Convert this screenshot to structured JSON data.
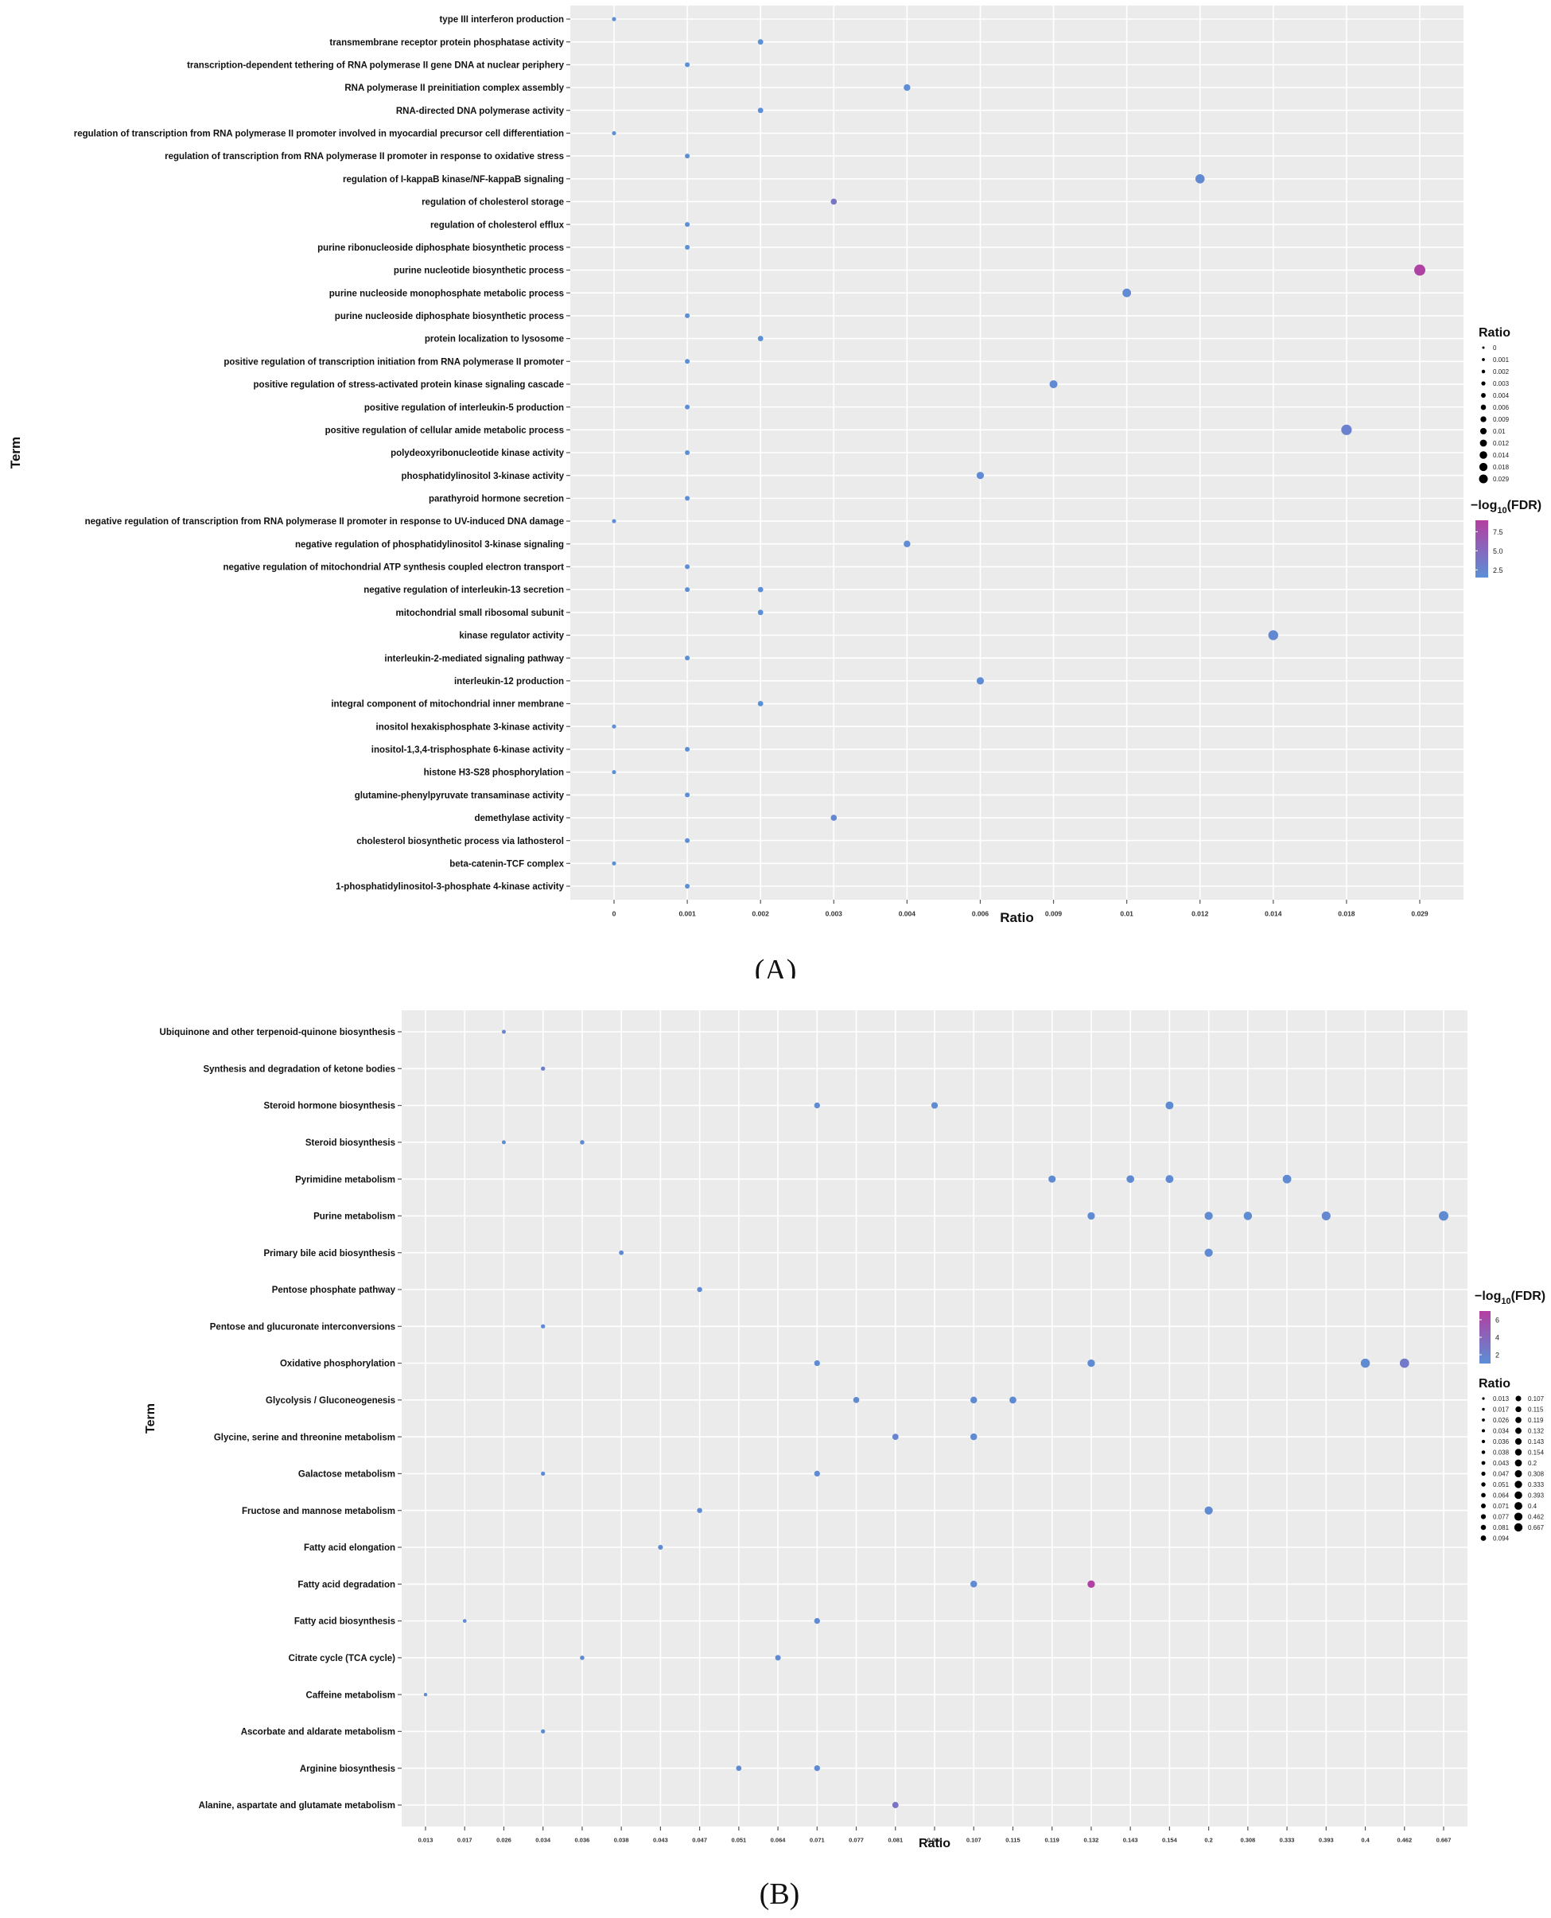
{
  "chart_data": [
    {
      "type": "scatter",
      "panel_label": "(A)",
      "xlabel": "Ratio",
      "ylabel": "Term",
      "x_categories": [
        "0",
        "0.001",
        "0.002",
        "0.003",
        "0.004",
        "0.006",
        "0.009",
        "0.01",
        "0.012",
        "0.014",
        "0.018",
        "0.029"
      ],
      "grid": true,
      "size_legend": {
        "title": "Ratio",
        "entries": [
          "0",
          "0.001",
          "0.002",
          "0.003",
          "0.004",
          "0.006",
          "0.009",
          "0.01",
          "0.012",
          "0.014",
          "0.018",
          "0.029"
        ]
      },
      "color_legend": {
        "title_prefix": "−log",
        "title_sub": "10",
        "title_suffix": "(FDR)",
        "ticks": [
          "7.5",
          "5.0",
          "2.5"
        ],
        "tick_values": [
          7.5,
          5.0,
          2.5
        ],
        "range": [
          1.5,
          9
        ],
        "low_color": "#5b8fd6",
        "high_color": "#b43ea0"
      },
      "points": [
        {
          "term": "type III interferon production",
          "x": "0",
          "fdr": 1.5
        },
        {
          "term": "transmembrane receptor protein phosphatase activity",
          "x": "0.002",
          "fdr": 1.5
        },
        {
          "term": "transcription-dependent tethering of RNA polymerase II gene DNA at nuclear periphery",
          "x": "0.001",
          "fdr": 1.5
        },
        {
          "term": "RNA polymerase II preinitiation complex assembly",
          "x": "0.004",
          "fdr": 1.6
        },
        {
          "term": "RNA-directed DNA polymerase activity",
          "x": "0.002",
          "fdr": 1.5
        },
        {
          "term": "regulation of transcription from RNA polymerase II promoter involved in myocardial precursor cell differentiation",
          "x": "0",
          "fdr": 1.5
        },
        {
          "term": "regulation of transcription from RNA polymerase II promoter in response to oxidative stress",
          "x": "0.001",
          "fdr": 1.5
        },
        {
          "term": "regulation of I-kappaB kinase/NF-kappaB signaling",
          "x": "0.012",
          "fdr": 2.0
        },
        {
          "term": "regulation of cholesterol storage",
          "x": "0.003",
          "fdr": 3.8
        },
        {
          "term": "regulation of cholesterol efflux",
          "x": "0.001",
          "fdr": 1.5
        },
        {
          "term": "purine ribonucleoside diphosphate biosynthetic process",
          "x": "0.001",
          "fdr": 1.5
        },
        {
          "term": "purine nucleotide biosynthetic process",
          "x": "0.029",
          "fdr": 8.5
        },
        {
          "term": "purine nucleoside monophosphate metabolic process",
          "x": "0.01",
          "fdr": 2.0
        },
        {
          "term": "purine nucleoside diphosphate biosynthetic process",
          "x": "0.001",
          "fdr": 1.5
        },
        {
          "term": "protein localization to lysosome",
          "x": "0.002",
          "fdr": 1.5
        },
        {
          "term": "positive regulation of transcription initiation from RNA polymerase II promoter",
          "x": "0.001",
          "fdr": 1.5
        },
        {
          "term": "positive regulation of stress-activated protein kinase signaling cascade",
          "x": "0.009",
          "fdr": 2.0
        },
        {
          "term": "positive regulation of interleukin-5 production",
          "x": "0.001",
          "fdr": 1.5
        },
        {
          "term": "positive regulation of cellular amide metabolic process",
          "x": "0.018",
          "fdr": 2.8
        },
        {
          "term": "polydeoxyribonucleotide kinase activity",
          "x": "0.001",
          "fdr": 1.5
        },
        {
          "term": "phosphatidylinositol 3-kinase activity",
          "x": "0.006",
          "fdr": 1.8
        },
        {
          "term": "parathyroid hormone secretion",
          "x": "0.001",
          "fdr": 1.5
        },
        {
          "term": "negative regulation of transcription from RNA polymerase II promoter in response to UV-induced DNA damage",
          "x": "0",
          "fdr": 1.5
        },
        {
          "term": "negative regulation of phosphatidylinositol 3-kinase signaling",
          "x": "0.004",
          "fdr": 1.8
        },
        {
          "term": "negative regulation of mitochondrial ATP synthesis coupled electron transport",
          "x": "0.001",
          "fdr": 1.5
        },
        {
          "term": "negative regulation of interleukin-13 secretion",
          "x": "0.001",
          "fdr": 1.5
        },
        {
          "term": "negative regulation of interleukin-13 secretion",
          "x": "0.002",
          "fdr": 1.5
        },
        {
          "term": "mitochondrial small ribosomal subunit",
          "x": "0.002",
          "fdr": 1.5
        },
        {
          "term": "kinase regulator activity",
          "x": "0.014",
          "fdr": 2.2
        },
        {
          "term": "interleukin-2-mediated signaling pathway",
          "x": "0.001",
          "fdr": 1.5
        },
        {
          "term": "interleukin-12 production",
          "x": "0.006",
          "fdr": 1.8
        },
        {
          "term": "integral component of mitochondrial inner membrane",
          "x": "0.002",
          "fdr": 1.5
        },
        {
          "term": "inositol hexakisphosphate 3-kinase activity",
          "x": "0",
          "fdr": 1.5
        },
        {
          "term": "inositol-1,3,4-trisphosphate 6-kinase activity",
          "x": "0.001",
          "fdr": 1.5
        },
        {
          "term": "histone H3-S28 phosphorylation",
          "x": "0",
          "fdr": 1.5
        },
        {
          "term": "glutamine-phenylpyruvate transaminase activity",
          "x": "0.001",
          "fdr": 1.5
        },
        {
          "term": "demethylase activity",
          "x": "0.003",
          "fdr": 2.2
        },
        {
          "term": "cholesterol biosynthetic process via lathosterol",
          "x": "0.001",
          "fdr": 1.5
        },
        {
          "term": "beta-catenin-TCF complex",
          "x": "0",
          "fdr": 1.5
        },
        {
          "term": "1-phosphatidylinositol-3-phosphate 4-kinase activity",
          "x": "0.001",
          "fdr": 1.5
        }
      ]
    },
    {
      "type": "scatter",
      "panel_label": "(B)",
      "xlabel": "Ratio",
      "ylabel": "Term",
      "x_categories": [
        "0.013",
        "0.017",
        "0.026",
        "0.034",
        "0.036",
        "0.038",
        "0.043",
        "0.047",
        "0.051",
        "0.064",
        "0.071",
        "0.077",
        "0.081",
        "0.094",
        "0.107",
        "0.115",
        "0.119",
        "0.132",
        "0.143",
        "0.154",
        "0.2",
        "0.308",
        "0.333",
        "0.393",
        "0.4",
        "0.462",
        "0.667"
      ],
      "grid": true,
      "color_legend": {
        "title_prefix": "−log",
        "title_sub": "10",
        "title_suffix": "(FDR)",
        "ticks": [
          "6",
          "4",
          "2"
        ],
        "tick_values": [
          6,
          4,
          2
        ],
        "range": [
          1,
          7
        ],
        "low_color": "#5b8fd6",
        "high_color": "#b43ea0"
      },
      "size_legend": {
        "title": "Ratio",
        "entries": [
          "0.013",
          "0.017",
          "0.026",
          "0.034",
          "0.036",
          "0.038",
          "0.043",
          "0.047",
          "0.051",
          "0.064",
          "0.071",
          "0.077",
          "0.081",
          "0.094",
          "0.107",
          "0.115",
          "0.119",
          "0.132",
          "0.143",
          "0.154",
          "0.2",
          "0.308",
          "0.333",
          "0.393",
          "0.4",
          "0.462",
          "0.667"
        ]
      },
      "points": [
        {
          "term": "Ubiquinone and other terpenoid-quinone biosynthesis",
          "x": "0.026",
          "fdr": 1.8
        },
        {
          "term": "Synthesis and degradation of ketone bodies",
          "x": "0.034",
          "fdr": 2.2
        },
        {
          "term": "Steroid hormone biosynthesis",
          "x": "0.071",
          "fdr": 1.3
        },
        {
          "term": "Steroid hormone biosynthesis",
          "x": "0.094",
          "fdr": 1.3
        },
        {
          "term": "Steroid hormone biosynthesis",
          "x": "0.154",
          "fdr": 1.3
        },
        {
          "term": "Steroid biosynthesis",
          "x": "0.026",
          "fdr": 1.3
        },
        {
          "term": "Steroid biosynthesis",
          "x": "0.036",
          "fdr": 1.3
        },
        {
          "term": "Pyrimidine metabolism",
          "x": "0.119",
          "fdr": 1.3
        },
        {
          "term": "Pyrimidine metabolism",
          "x": "0.143",
          "fdr": 1.3
        },
        {
          "term": "Pyrimidine metabolism",
          "x": "0.154",
          "fdr": 1.3
        },
        {
          "term": "Pyrimidine metabolism",
          "x": "0.333",
          "fdr": 1.3
        },
        {
          "term": "Purine metabolism",
          "x": "0.132",
          "fdr": 1.3
        },
        {
          "term": "Purine metabolism",
          "x": "0.2",
          "fdr": 1.3
        },
        {
          "term": "Purine metabolism",
          "x": "0.308",
          "fdr": 1.3
        },
        {
          "term": "Purine metabolism",
          "x": "0.393",
          "fdr": 1.6
        },
        {
          "term": "Purine metabolism",
          "x": "0.667",
          "fdr": 1.3
        },
        {
          "term": "Primary bile acid biosynthesis",
          "x": "0.038",
          "fdr": 1.3
        },
        {
          "term": "Primary bile acid biosynthesis",
          "x": "0.2",
          "fdr": 1.3
        },
        {
          "term": "Pentose phosphate pathway",
          "x": "0.047",
          "fdr": 1.3
        },
        {
          "term": "Pentose and glucuronate interconversions",
          "x": "0.034",
          "fdr": 1.3
        },
        {
          "term": "Oxidative phosphorylation",
          "x": "0.071",
          "fdr": 1.3
        },
        {
          "term": "Oxidative phosphorylation",
          "x": "0.132",
          "fdr": 1.3
        },
        {
          "term": "Oxidative phosphorylation",
          "x": "0.4",
          "fdr": 1.3
        },
        {
          "term": "Oxidative phosphorylation",
          "x": "0.462",
          "fdr": 2.6
        },
        {
          "term": "Glycolysis / Gluconeogenesis",
          "x": "0.077",
          "fdr": 1.3
        },
        {
          "term": "Glycolysis / Gluconeogenesis",
          "x": "0.107",
          "fdr": 1.3
        },
        {
          "term": "Glycolysis / Gluconeogenesis",
          "x": "0.115",
          "fdr": 1.3
        },
        {
          "term": "Glycine, serine and threonine metabolism",
          "x": "0.081",
          "fdr": 1.8
        },
        {
          "term": "Glycine, serine and threonine metabolism",
          "x": "0.107",
          "fdr": 1.3
        },
        {
          "term": "Galactose metabolism",
          "x": "0.034",
          "fdr": 1.3
        },
        {
          "term": "Galactose metabolism",
          "x": "0.071",
          "fdr": 1.3
        },
        {
          "term": "Fructose and mannose metabolism",
          "x": "0.047",
          "fdr": 1.3
        },
        {
          "term": "Fructose and mannose metabolism",
          "x": "0.2",
          "fdr": 1.3
        },
        {
          "term": "Fatty acid elongation",
          "x": "0.043",
          "fdr": 1.3
        },
        {
          "term": "Fatty acid degradation",
          "x": "0.107",
          "fdr": 1.3
        },
        {
          "term": "Fatty acid degradation",
          "x": "0.132",
          "fdr": 6.8
        },
        {
          "term": "Fatty acid biosynthesis",
          "x": "0.017",
          "fdr": 1.3
        },
        {
          "term": "Fatty acid biosynthesis",
          "x": "0.071",
          "fdr": 1.3
        },
        {
          "term": "Citrate cycle (TCA cycle)",
          "x": "0.036",
          "fdr": 1.3
        },
        {
          "term": "Citrate cycle (TCA cycle)",
          "x": "0.064",
          "fdr": 1.3
        },
        {
          "term": "Caffeine metabolism",
          "x": "0.013",
          "fdr": 1.3
        },
        {
          "term": "Ascorbate and aldarate metabolism",
          "x": "0.034",
          "fdr": 1.3
        },
        {
          "term": "Arginine biosynthesis",
          "x": "0.051",
          "fdr": 1.3
        },
        {
          "term": "Arginine biosynthesis",
          "x": "0.071",
          "fdr": 1.3
        },
        {
          "term": "Alanine, aspartate and glutamate metabolism",
          "x": "0.081",
          "fdr": 3.0
        }
      ]
    }
  ]
}
